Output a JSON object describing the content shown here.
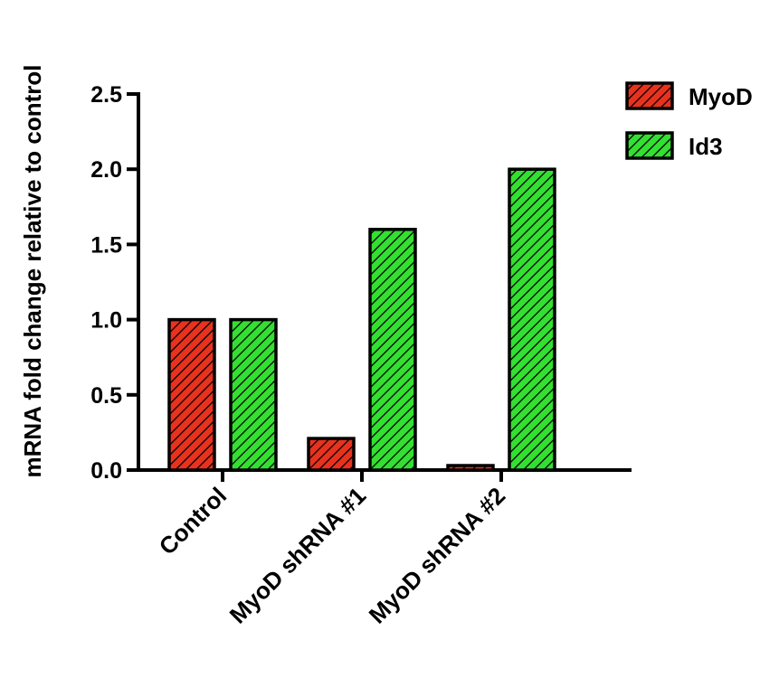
{
  "chart_data": {
    "type": "bar",
    "title": "",
    "xlabel": "",
    "ylabel": "mRNA fold change relative to control",
    "categories": [
      "Control",
      "MyoD shRNA #1",
      "MyoD shRNA #2"
    ],
    "series": [
      {
        "name": "MyoD",
        "values": [
          1.0,
          0.21,
          0.03
        ],
        "color": "#e8321e",
        "pattern": "diagonal-hatch"
      },
      {
        "name": "Id3",
        "values": [
          1.0,
          1.6,
          2.0
        ],
        "color": "#33e031",
        "pattern": "diagonal-hatch"
      }
    ],
    "ylim": [
      0,
      2.5
    ],
    "yticks": [
      "0.0",
      "0.5",
      "1.0",
      "1.5",
      "2.0",
      "2.5"
    ],
    "grid": false,
    "legend_position": "top-right"
  }
}
